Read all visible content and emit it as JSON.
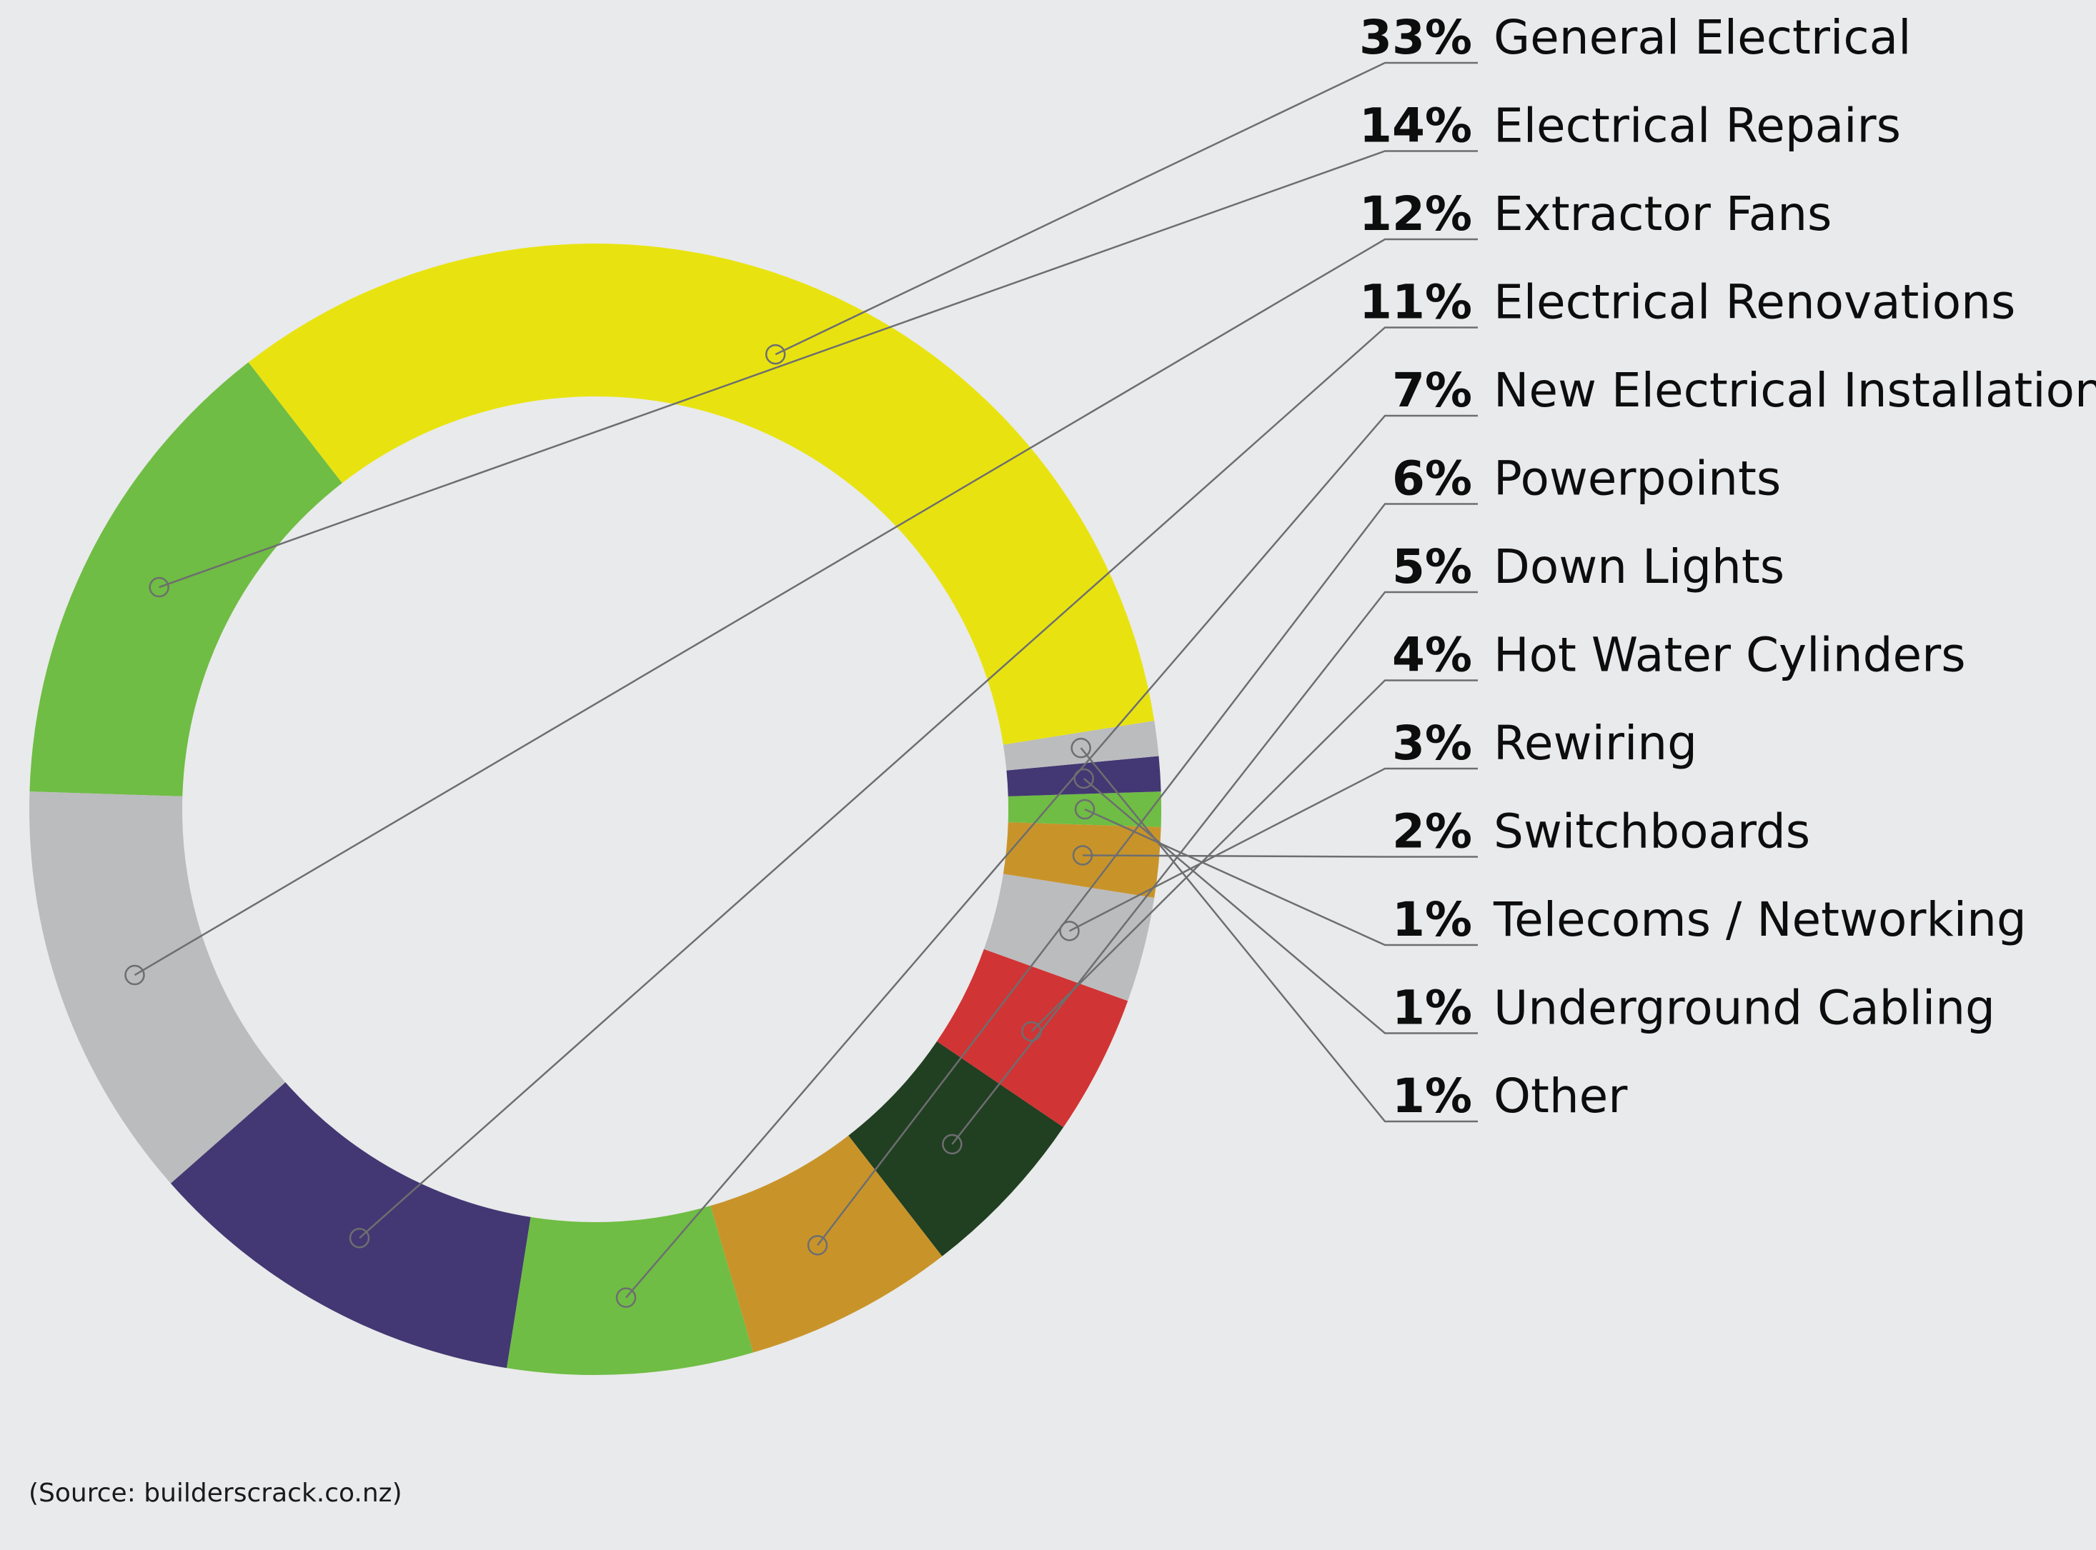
{
  "chart_data": {
    "type": "pie",
    "variant": "donut",
    "categories": [
      "General Electrical",
      "Electrical Repairs",
      "Extractor Fans",
      "Electrical Renovations",
      "New Electrical Installations",
      "Powerpoints",
      "Down Lights",
      "Hot Water Cylinders",
      "Rewiring",
      "Switchboards",
      "Telecoms / Networking",
      "Underground Cabling",
      "Other"
    ],
    "values": [
      33,
      14,
      12,
      11,
      7,
      6,
      5,
      4,
      3,
      2,
      1,
      1,
      1
    ],
    "value_labels": [
      "33%",
      "14%",
      "12%",
      "11%",
      "7%",
      "6%",
      "5%",
      "4%",
      "3%",
      "2%",
      "1%",
      "1%",
      "1%"
    ],
    "colors": [
      "#e8e310",
      "#6fbd44",
      "#bbbcbe",
      "#433873",
      "#6fbd44",
      "#c8942a",
      "#213f21",
      "#d13434",
      "#bbbcbe",
      "#c8942a",
      "#6fbd44",
      "#433873",
      "#bbbcbe"
    ],
    "legend_position": "right",
    "leader_line_color": "#6d6e70",
    "source": "(Source: builderscrack.co.nz)"
  }
}
